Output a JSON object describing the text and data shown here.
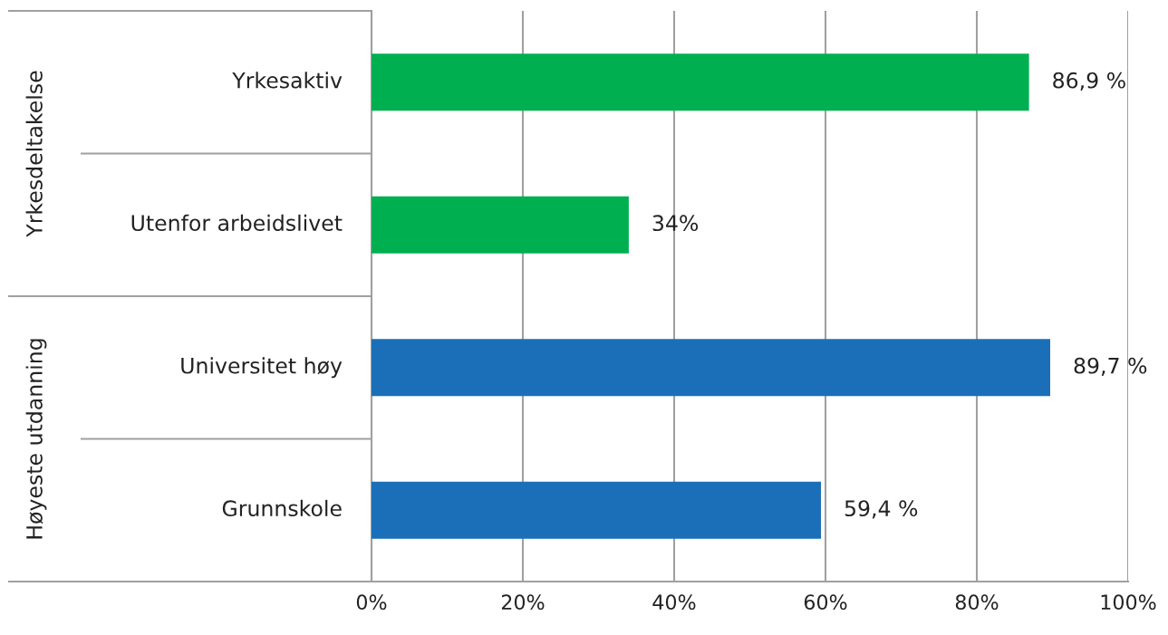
{
  "chart_data": {
    "type": "bar",
    "orientation": "horizontal",
    "categories": [
      "Yrkesaktiv",
      "Utenfor arbeidslivet",
      "Universitet høy",
      "Grunnskole"
    ],
    "values": [
      86.9,
      34,
      89.7,
      59.4
    ],
    "colors": [
      "#00b050",
      "#00b050",
      "#1b6fb8",
      "#1b6fb8"
    ],
    "value_labels": [
      "86,9 %",
      "34%",
      "89,7 %",
      "59,4 %"
    ],
    "xlim": [
      0,
      100
    ],
    "xticks": [
      {
        "value": 0,
        "label": "0%"
      },
      {
        "value": 20,
        "label": "20%"
      },
      {
        "value": 40,
        "label": "40%"
      },
      {
        "value": 60,
        "label": "60%"
      },
      {
        "value": 80,
        "label": "80%"
      },
      {
        "value": 100,
        "label": "100%"
      }
    ],
    "grid": "x",
    "annotations": [
      "Yrkesdeltakelse",
      "Høyeste utdanning"
    ]
  }
}
